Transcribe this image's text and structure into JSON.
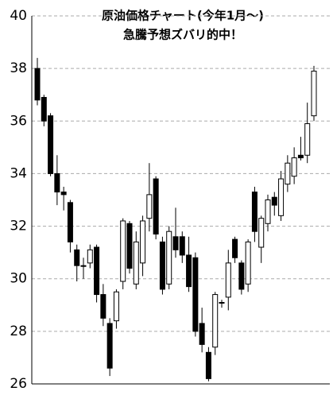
{
  "chart_data": {
    "type": "candlestick",
    "title": "原油価格チャート(今年1月～)",
    "subtitle": "急騰予想ズバリ的中！",
    "open": [
      38.0,
      36.9,
      36.2,
      34.0,
      33.3,
      32.9,
      31.1,
      30.5,
      30.6,
      31.2,
      29.4,
      28.3,
      28.4,
      29.9,
      32.1,
      29.8,
      30.6,
      32.3,
      33.8,
      31.4,
      29.8,
      31.6,
      31.6,
      30.9,
      30.8,
      28.3,
      27.2,
      27.4,
      29.1,
      29.3,
      31.5,
      30.6,
      29.8,
      33.3,
      31.2,
      32.1,
      33.1,
      32.4,
      33.6,
      33.9,
      34.7,
      34.7,
      36.2
    ],
    "high": [
      38.4,
      37.0,
      36.3,
      34.7,
      33.5,
      33.0,
      31.3,
      30.8,
      31.3,
      31.3,
      29.8,
      28.5,
      29.6,
      32.3,
      32.2,
      31.8,
      32.4,
      34.4,
      33.9,
      31.6,
      32.0,
      32.7,
      31.8,
      31.6,
      31.0,
      28.9,
      27.4,
      29.5,
      29.2,
      31.1,
      31.6,
      30.7,
      31.5,
      33.5,
      32.4,
      33.2,
      33.3,
      34.1,
      34.7,
      35.0,
      35.4,
      36.7,
      38.1
    ],
    "low": [
      36.6,
      35.8,
      33.9,
      32.8,
      32.6,
      31.0,
      29.9,
      30.0,
      30.4,
      29.1,
      28.2,
      26.3,
      28.1,
      29.6,
      30.2,
      29.6,
      30.1,
      31.8,
      31.5,
      29.4,
      29.6,
      30.8,
      30.6,
      29.5,
      27.8,
      27.2,
      26.1,
      27.1,
      28.9,
      28.8,
      30.6,
      29.4,
      29.5,
      31.4,
      30.6,
      31.8,
      32.4,
      32.2,
      33.3,
      33.6,
      34.5,
      34.4,
      36.0
    ],
    "close": [
      36.8,
      36.0,
      34.0,
      33.3,
      33.2,
      31.4,
      30.5,
      30.5,
      31.1,
      29.4,
      28.5,
      26.6,
      29.5,
      32.2,
      30.4,
      31.4,
      32.2,
      33.2,
      31.7,
      29.6,
      31.8,
      31.1,
      30.9,
      29.7,
      28.0,
      27.5,
      26.2,
      29.4,
      29.1,
      30.6,
      30.8,
      29.6,
      31.4,
      31.8,
      32.3,
      33.0,
      32.8,
      33.8,
      34.4,
      34.6,
      34.6,
      35.9,
      37.9
    ],
    "up_color": "#ffffff",
    "down_color": "#000000",
    "ylim": [
      26,
      40
    ],
    "yticks": [
      26,
      28,
      30,
      32,
      34,
      36,
      38,
      40
    ],
    "grid": true
  }
}
